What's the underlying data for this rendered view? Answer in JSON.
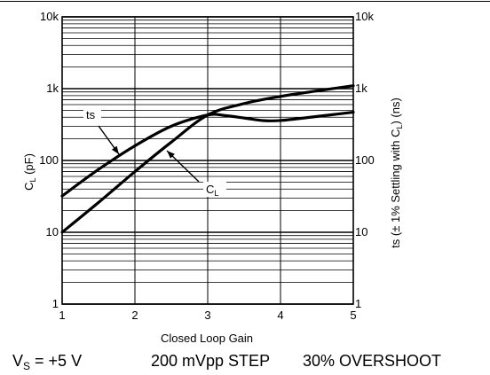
{
  "chart_data": {
    "type": "line",
    "x_scale": "linear",
    "y_scale": "log",
    "xlim": [
      1,
      5
    ],
    "ylim": [
      1,
      10000
    ],
    "x_ticks": [
      "1",
      "2",
      "3",
      "4",
      "5"
    ],
    "y_ticks_left": [
      "1",
      "10",
      "100",
      "1k",
      "10k"
    ],
    "y_ticks_right": [
      "1",
      "10",
      "100",
      "1k",
      "10k"
    ],
    "xlabel": "Closed Loop Gain",
    "ylabel_left": {
      "main": "C",
      "sub": "L",
      "rest": " (pF)"
    },
    "ylabel_right": {
      "main": "ts (± 1% Settling with C",
      "sub": "L",
      "rest": ") (ns)"
    },
    "grid": true,
    "series": [
      {
        "name": "C_L",
        "label": {
          "main": "C",
          "sub": "L"
        },
        "x": [
          1,
          1.5,
          2,
          2.5,
          3,
          3.5,
          4,
          4.5,
          5
        ],
        "y": [
          10,
          26,
          70,
          180,
          430,
          620,
          780,
          930,
          1100
        ]
      },
      {
        "name": "ts",
        "label": {
          "main": "ts",
          "sub": ""
        },
        "x": [
          1,
          1.5,
          2,
          2.5,
          3,
          3.25,
          3.5,
          3.75,
          4,
          4.5,
          5
        ],
        "y": [
          32,
          75,
          160,
          300,
          430,
          420,
          390,
          360,
          360,
          410,
          470
        ]
      }
    ]
  },
  "conditions": {
    "supply": {
      "main": "V",
      "sub": "S",
      "rest": " = +5 V"
    },
    "step": "200 mVpp STEP",
    "overshoot": "30% OVERSHOOT"
  }
}
